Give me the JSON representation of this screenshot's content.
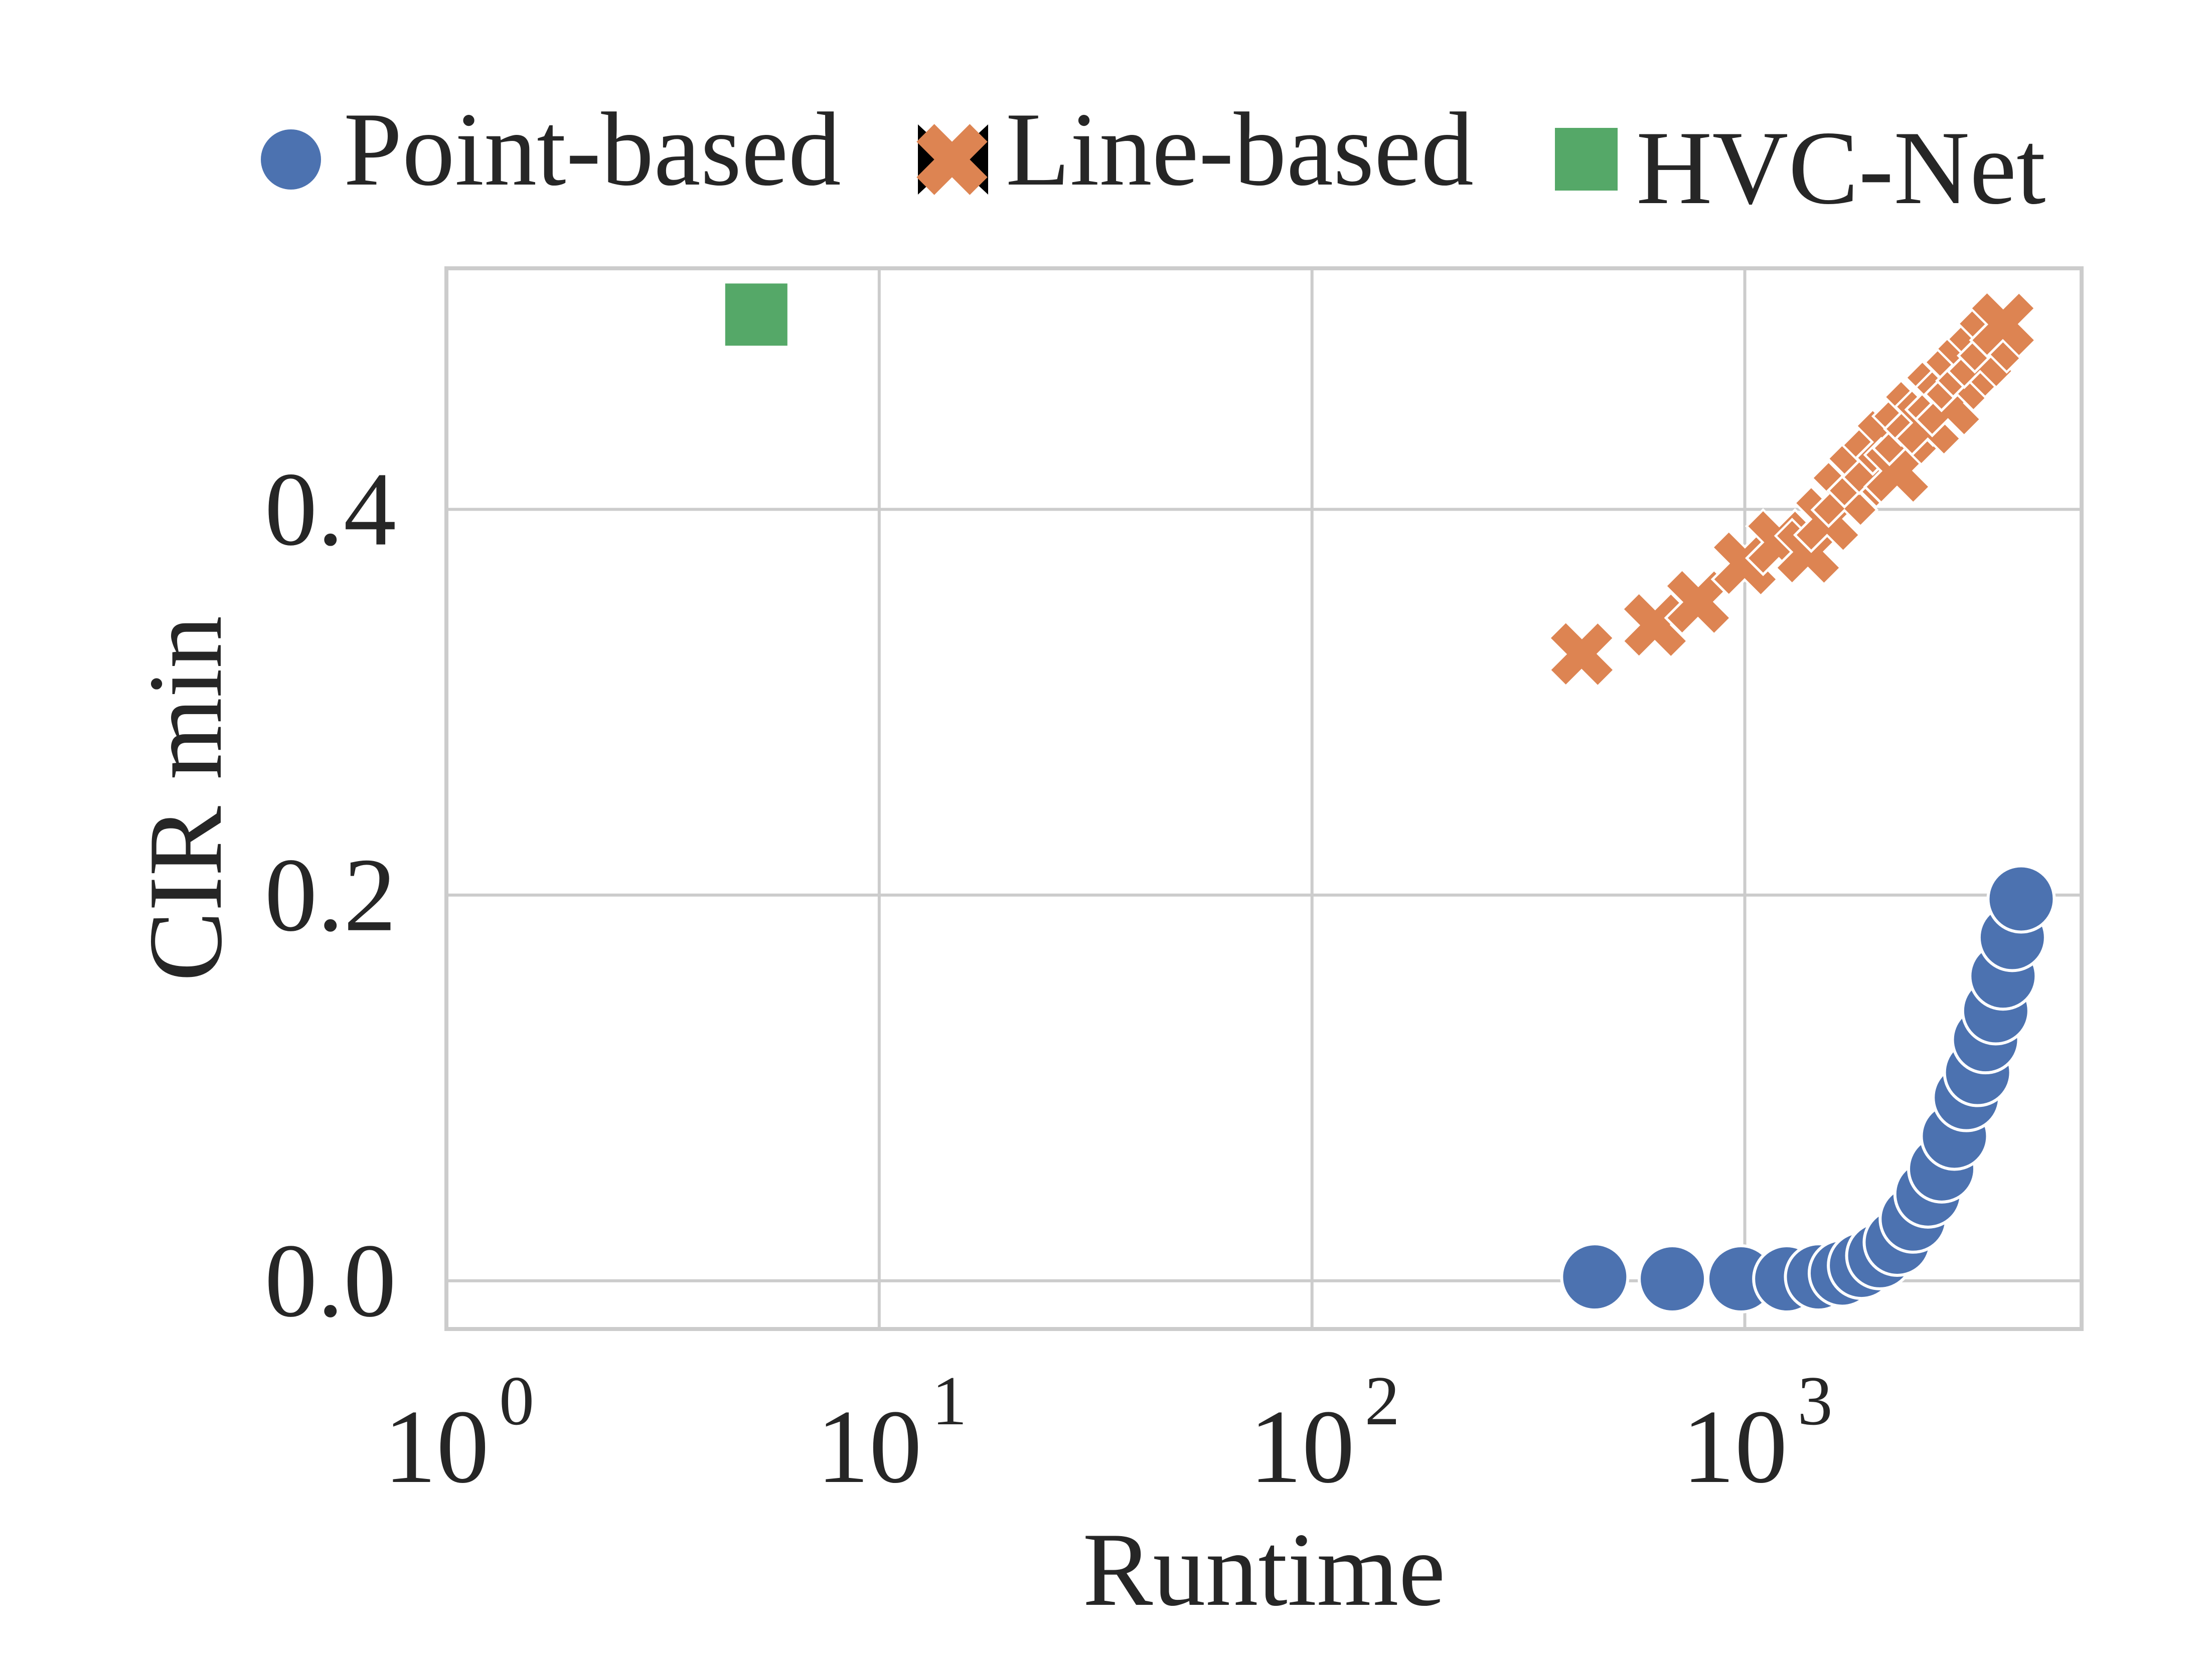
{
  "chart_data": {
    "type": "scatter",
    "title": "",
    "xlabel": "Runtime",
    "ylabel": "CIR min",
    "xscale": "log",
    "xlim": [
      1,
      6000
    ],
    "ylim": [
      -0.025,
      0.525
    ],
    "xticks": [
      1,
      10,
      100,
      1000
    ],
    "xtick_labels": [
      {
        "base": "10",
        "exp": "0"
      },
      {
        "base": "10",
        "exp": "1"
      },
      {
        "base": "10",
        "exp": "2"
      },
      {
        "base": "10",
        "exp": "3"
      }
    ],
    "yticks": [
      0.0,
      0.2,
      0.4
    ],
    "ytick_labels": [
      "0.0",
      "0.2",
      "0.4"
    ],
    "grid": true,
    "legend_position": "top",
    "series": [
      {
        "name": "Point-based",
        "marker": "circle",
        "color": "#4c72b0",
        "points": [
          [
            450,
            0.002
          ],
          [
            680,
            0.001
          ],
          [
            980,
            0.001
          ],
          [
            1250,
            0.001
          ],
          [
            1480,
            0.002
          ],
          [
            1680,
            0.004
          ],
          [
            1860,
            0.008
          ],
          [
            2050,
            0.013
          ],
          [
            2250,
            0.02
          ],
          [
            2450,
            0.032
          ],
          [
            2650,
            0.045
          ],
          [
            2850,
            0.058
          ],
          [
            3050,
            0.075
          ],
          [
            3250,
            0.095
          ],
          [
            3450,
            0.108
          ],
          [
            3600,
            0.125
          ],
          [
            3800,
            0.14
          ],
          [
            3950,
            0.158
          ],
          [
            4150,
            0.178
          ],
          [
            4350,
            0.198
          ]
        ]
      },
      {
        "name": "Line-based",
        "marker": "x",
        "color": "#dd8452",
        "points": [
          [
            420,
            0.325
          ],
          [
            620,
            0.34
          ],
          [
            780,
            0.352
          ],
          [
            1000,
            0.372
          ],
          [
            1200,
            0.383
          ],
          [
            1400,
            0.378
          ],
          [
            1550,
            0.395
          ],
          [
            1700,
            0.408
          ],
          [
            1850,
            0.418
          ],
          [
            2000,
            0.425
          ],
          [
            2150,
            0.435
          ],
          [
            2250,
            0.42
          ],
          [
            2350,
            0.44
          ],
          [
            2500,
            0.45
          ],
          [
            2650,
            0.445
          ],
          [
            2800,
            0.46
          ],
          [
            2950,
            0.455
          ],
          [
            3100,
            0.468
          ],
          [
            3300,
            0.475
          ],
          [
            3500,
            0.48
          ],
          [
            3700,
            0.488
          ],
          [
            3950,
            0.496
          ]
        ]
      },
      {
        "name": "HVC-Net",
        "marker": "square",
        "color": "#55a868",
        "points": [
          [
            5.2,
            0.501
          ]
        ]
      }
    ]
  }
}
